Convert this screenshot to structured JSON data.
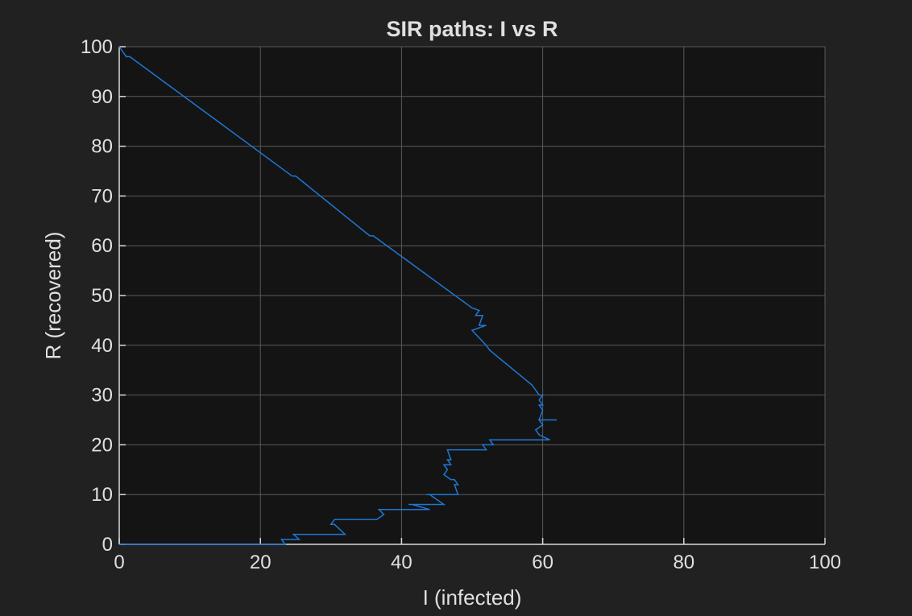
{
  "chart_data": {
    "type": "line",
    "title": "SIR paths: I vs R",
    "xlabel": "I (infected)",
    "ylabel": "R (recovered)",
    "xlim": [
      0,
      100
    ],
    "ylim": [
      0,
      100
    ],
    "xticks": [
      0,
      20,
      40,
      60,
      80,
      100
    ],
    "yticks": [
      0,
      10,
      20,
      30,
      40,
      50,
      60,
      70,
      80,
      90,
      100
    ],
    "grid": true,
    "colors": {
      "background": "#212121",
      "axes_background": "#141414",
      "grid": "#5a5a5a",
      "axis": "#d9d9d9",
      "text": "#e0e0e0",
      "line": "#1f77d4"
    },
    "series": [
      {
        "x": [
          0,
          23.5,
          23.0,
          25.5,
          24.7,
          32.0,
          30.5,
          30.0,
          30.5,
          36.5,
          37.5,
          36.8,
          44.0,
          41.5,
          41.0,
          46.0,
          44.0,
          43.5,
          48.0,
          47.5,
          48.0,
          47.5,
          47.0,
          46.0,
          46.5,
          46.0,
          47.0,
          46.5,
          47.0,
          46.5,
          52.0,
          51.5,
          53.0,
          52.5,
          61.0,
          59.5,
          59.0,
          60.0,
          59.5,
          62.0,
          59.5,
          60.0,
          59.5,
          60.0,
          59.5,
          60.0,
          59.5,
          59.0,
          58.5,
          52.5,
          52.0,
          50.0,
          52.0,
          51.0,
          51.5,
          50.5,
          51.0,
          50.0,
          36.0,
          35.5,
          25.0,
          24.5,
          1.5,
          1.0,
          0
        ],
        "y": [
          0,
          0,
          1,
          1,
          2,
          2,
          4,
          4,
          5,
          5,
          6,
          7,
          7,
          8,
          8,
          8,
          10,
          10,
          10,
          12,
          12,
          13,
          13,
          14,
          15,
          16,
          16,
          17,
          17,
          19,
          19,
          20,
          20,
          21,
          21,
          22,
          23,
          24,
          25,
          25,
          25,
          27,
          28,
          28,
          29,
          30,
          30,
          31,
          32,
          39,
          40,
          43,
          44,
          44,
          46,
          46,
          47,
          47.5,
          62,
          62,
          74,
          74,
          98,
          98,
          100
        ]
      }
    ]
  }
}
